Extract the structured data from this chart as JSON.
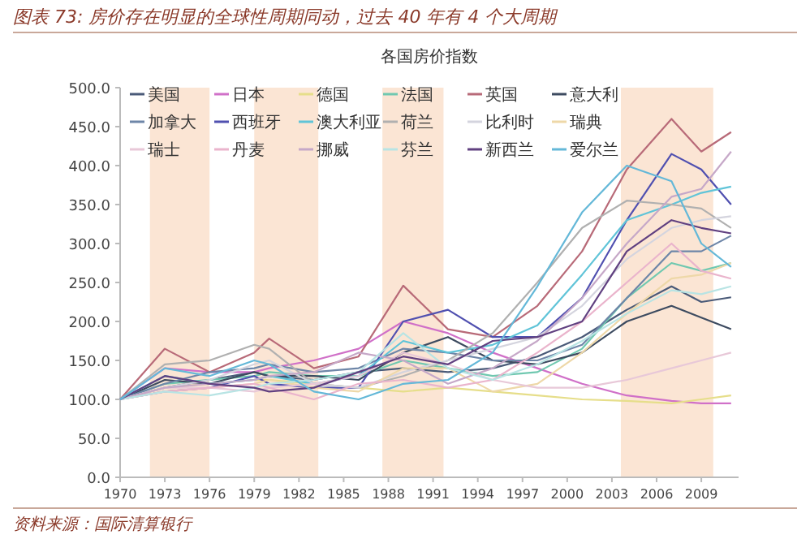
{
  "chart_data": {
    "type": "line",
    "title": "图表 73: 房价存在明显的全球性周期同动，过去 40 年有 4 个大周期",
    "subtitle": "各国房价指数",
    "annotations": [
      "资料来源：国际清算银行"
    ],
    "x": [
      1970,
      1973,
      1976,
      1979,
      1980,
      1983,
      1986,
      1989,
      1992,
      1995,
      1998,
      2001,
      2004,
      2007,
      2009,
      2011
    ],
    "xlim": [
      1970,
      2011.5
    ],
    "xticks": [
      1970,
      1973,
      1976,
      1979,
      1982,
      1985,
      1988,
      1991,
      1994,
      1997,
      2000,
      2003,
      2006,
      2009
    ],
    "ylim": [
      0,
      500
    ],
    "yticks": [
      {
        "value": 0,
        "label": "0.0"
      },
      {
        "value": 50,
        "label": "50.0"
      },
      {
        "value": 100,
        "label": "100.0"
      },
      {
        "value": 150,
        "label": "150.0"
      },
      {
        "value": 200,
        "label": "200.0"
      },
      {
        "value": 250,
        "label": "250.0"
      },
      {
        "value": 300,
        "label": "300.0"
      },
      {
        "value": 350,
        "label": "350.0"
      },
      {
        "value": 400,
        "label": "400.0"
      },
      {
        "value": 450,
        "label": "450.0"
      },
      {
        "value": 500,
        "label": "500.0"
      }
    ],
    "bands": [
      {
        "axis": "x",
        "from": 1972,
        "to": 1976,
        "color": "#fbe5d4"
      },
      {
        "axis": "x",
        "from": 1979,
        "to": 1983.3,
        "color": "#fbe5d4"
      },
      {
        "axis": "x",
        "from": 1987.6,
        "to": 1991.7,
        "color": "#fbe5d4"
      },
      {
        "axis": "x",
        "from": 2003.6,
        "to": 2009.8,
        "color": "#fbe5d4"
      }
    ],
    "legend": "top left",
    "marker": "none",
    "line_style": "solid",
    "grid": false,
    "series": [
      {
        "name": "美国",
        "color": "#4a5a78",
        "values": [
          100,
          115,
          125,
          135,
          130,
          125,
          135,
          140,
          135,
          140,
          155,
          180,
          215,
          245,
          225,
          231
        ]
      },
      {
        "name": "日本",
        "color": "#d070c8",
        "values": [
          100,
          140,
          135,
          135,
          140,
          150,
          165,
          200,
          185,
          160,
          140,
          120,
          105,
          98,
          95,
          95
        ]
      },
      {
        "name": "德国",
        "color": "#e6de8a",
        "values": [
          100,
          115,
          120,
          125,
          125,
          120,
          115,
          110,
          115,
          110,
          105,
          100,
          98,
          95,
          100,
          105
        ]
      },
      {
        "name": "法国",
        "color": "#70c8b0",
        "values": [
          100,
          120,
          125,
          130,
          135,
          130,
          130,
          150,
          140,
          130,
          135,
          165,
          230,
          275,
          265,
          275
        ]
      },
      {
        "name": "英国",
        "color": "#b86a78",
        "values": [
          100,
          165,
          135,
          160,
          178,
          140,
          155,
          246,
          190,
          180,
          220,
          290,
          395,
          460,
          418,
          443
        ]
      },
      {
        "name": "意大利",
        "color": "#3d4b60",
        "values": [
          100,
          125,
          120,
          135,
          130,
          130,
          125,
          160,
          180,
          150,
          145,
          160,
          200,
          220,
          205,
          190
        ]
      },
      {
        "name": "加拿大",
        "color": "#6e86a8",
        "values": [
          100,
          120,
          135,
          140,
          145,
          135,
          140,
          165,
          160,
          150,
          150,
          170,
          230,
          290,
          290,
          310
        ]
      },
      {
        "name": "西班牙",
        "color": "#5050b0",
        "values": [
          100,
          110,
          115,
          130,
          120,
          115,
          115,
          200,
          215,
          180,
          180,
          230,
          330,
          415,
          395,
          350
        ]
      },
      {
        "name": "澳大利亚",
        "color": "#60c4d8",
        "values": [
          100,
          130,
          120,
          125,
          130,
          120,
          130,
          175,
          160,
          170,
          195,
          260,
          330,
          350,
          365,
          373
        ]
      },
      {
        "name": "荷兰",
        "color": "#b0b0b0",
        "values": [
          100,
          145,
          150,
          170,
          165,
          120,
          115,
          130,
          150,
          185,
          250,
          320,
          355,
          350,
          345,
          320
        ]
      },
      {
        "name": "比利时",
        "color": "#d4d4de",
        "values": [
          100,
          115,
          125,
          145,
          150,
          120,
          115,
          135,
          150,
          165,
          180,
          220,
          280,
          320,
          330,
          335
        ]
      },
      {
        "name": "瑞典",
        "color": "#eed8a8",
        "values": [
          100,
          110,
          115,
          120,
          125,
          115,
          110,
          140,
          140,
          110,
          120,
          160,
          210,
          255,
          260,
          275
        ]
      },
      {
        "name": "瑞士",
        "color": "#e8c8d8",
        "values": [
          100,
          115,
          115,
          110,
          115,
          120,
          130,
          160,
          145,
          125,
          115,
          115,
          125,
          140,
          150,
          160
        ]
      },
      {
        "name": "丹麦",
        "color": "#eab4cc",
        "values": [
          100,
          110,
          115,
          120,
          115,
          100,
          120,
          125,
          115,
          125,
          160,
          200,
          250,
          300,
          265,
          255
        ]
      },
      {
        "name": "挪威",
        "color": "#c6a8c8",
        "values": [
          100,
          115,
          120,
          125,
          130,
          135,
          160,
          150,
          120,
          140,
          175,
          230,
          300,
          360,
          370,
          418
        ]
      },
      {
        "name": "芬兰",
        "color": "#b8e4e4",
        "values": [
          100,
          110,
          105,
          115,
          120,
          125,
          135,
          185,
          140,
          125,
          145,
          175,
          210,
          240,
          235,
          245
        ]
      },
      {
        "name": "新西兰",
        "color": "#604080",
        "values": [
          100,
          130,
          120,
          115,
          110,
          115,
          135,
          155,
          145,
          175,
          180,
          200,
          290,
          330,
          320,
          313
        ]
      },
      {
        "name": "爱尔兰",
        "color": "#64b8d8",
        "values": [
          100,
          140,
          130,
          150,
          145,
          110,
          100,
          120,
          125,
          160,
          245,
          340,
          400,
          380,
          300,
          270
        ]
      }
    ]
  }
}
